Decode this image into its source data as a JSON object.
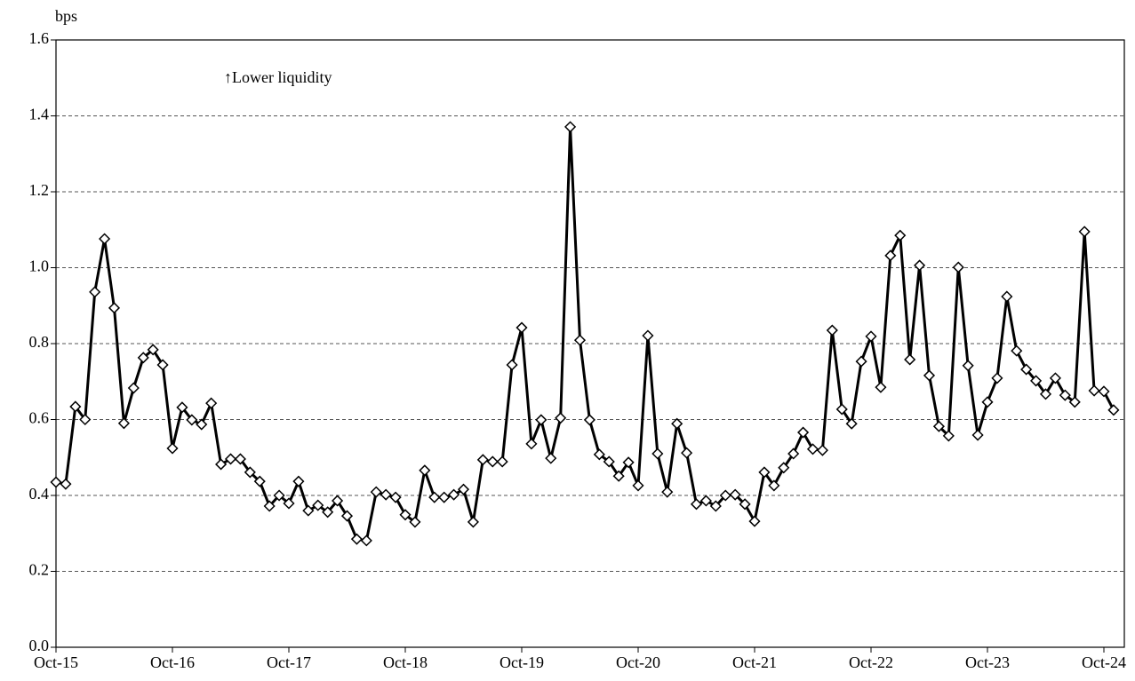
{
  "chart_data": {
    "type": "line",
    "y_label": "bps",
    "annotation": "↑Lower liquidity",
    "color": "#000000",
    "marker": "diamond",
    "grid": true,
    "categories": [
      "Oct-15",
      null,
      null,
      null,
      null,
      null,
      null,
      null,
      null,
      null,
      null,
      null,
      "Oct-16",
      null,
      null,
      null,
      null,
      null,
      null,
      null,
      null,
      null,
      null,
      null,
      "Oct-17",
      null,
      null,
      null,
      null,
      null,
      null,
      null,
      null,
      null,
      null,
      null,
      "Oct-18",
      null,
      null,
      null,
      null,
      null,
      null,
      null,
      null,
      null,
      null,
      null,
      "Oct-19",
      null,
      null,
      null,
      null,
      null,
      null,
      null,
      null,
      null,
      null,
      null,
      "Oct-20",
      null,
      null,
      null,
      null,
      null,
      null,
      null,
      null,
      null,
      null,
      null,
      "Oct-21",
      null,
      null,
      null,
      null,
      null,
      null,
      null,
      null,
      null,
      null,
      null,
      "Oct-22",
      null,
      null,
      null,
      null,
      null,
      null,
      null,
      null,
      null,
      null,
      null,
      "Oct-23",
      null,
      null,
      null,
      null,
      null,
      null,
      null,
      null,
      null,
      null,
      null,
      "Oct-24",
      null
    ],
    "values": [
      0.435,
      0.43,
      0.634,
      0.6,
      0.936,
      1.076,
      0.894,
      0.59,
      0.683,
      0.763,
      0.784,
      0.744,
      0.524,
      0.632,
      0.599,
      0.587,
      0.643,
      0.482,
      0.496,
      0.496,
      0.461,
      0.437,
      0.372,
      0.4,
      0.379,
      0.437,
      0.36,
      0.374,
      0.356,
      0.386,
      0.346,
      0.285,
      0.281,
      0.409,
      0.402,
      0.395,
      0.349,
      0.33,
      0.466,
      0.395,
      0.395,
      0.402,
      0.416,
      0.33,
      0.494,
      0.489,
      0.489,
      0.744,
      0.842,
      0.536,
      0.599,
      0.498,
      0.604,
      1.371,
      0.809,
      0.599,
      0.508,
      0.489,
      0.451,
      0.487,
      0.426,
      0.821,
      0.51,
      0.409,
      0.589,
      0.512,
      0.377,
      0.386,
      0.372,
      0.4,
      0.402,
      0.377,
      0.332,
      0.461,
      0.426,
      0.473,
      0.51,
      0.566,
      0.522,
      0.519,
      0.835,
      0.627,
      0.589,
      0.753,
      0.819,
      0.685,
      1.032,
      1.085,
      0.758,
      1.006,
      0.716,
      0.582,
      0.557,
      1.001,
      0.742,
      0.559,
      0.646,
      0.709,
      0.924,
      0.781,
      0.732,
      0.702,
      0.667,
      0.709,
      0.664,
      0.646,
      1.095,
      0.676,
      0.674,
      0.625
    ],
    "ylim": [
      0,
      1.6
    ],
    "yticks": [
      {
        "value": 0,
        "label": "0.0"
      },
      0.2,
      0.4,
      0.6,
      0.8,
      {
        "value": 1,
        "label": "1.0"
      },
      1.2,
      1.4,
      1.6
    ]
  }
}
